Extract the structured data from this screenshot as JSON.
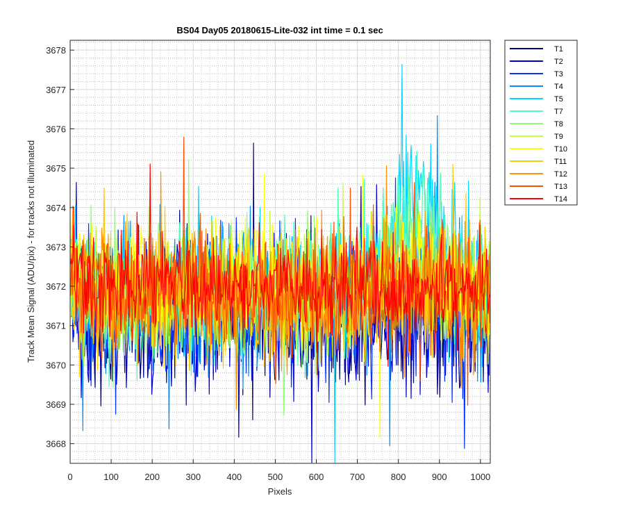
{
  "chart_data": {
    "type": "line",
    "title": "BS04 Day05 20180615-Lite-032 int time = 0.1 sec",
    "xlabel": "Pixels",
    "ylabel": "Track Mean Signal (ADU/pix) - for tracks not illuminated",
    "xlim": [
      0,
      1024
    ],
    "ylim": [
      3667.5,
      3678.25
    ],
    "xticks": [
      0,
      100,
      200,
      300,
      400,
      500,
      600,
      700,
      800,
      900,
      1000
    ],
    "yticks": [
      3668,
      3669,
      3670,
      3671,
      3672,
      3673,
      3674,
      3675,
      3676,
      3677,
      3678
    ],
    "grid": "major and minor, dotted",
    "legend_position": "outside-right-top",
    "series": [
      {
        "name": "T1",
        "color": "#00007f",
        "mean": 3671.1,
        "spread": 1.1,
        "high_pixel_bump": 0.0
      },
      {
        "name": "T2",
        "color": "#0000cc",
        "mean": 3671.2,
        "spread": 1.1,
        "high_pixel_bump": 0.0
      },
      {
        "name": "T3",
        "color": "#0033ff",
        "mean": 3671.4,
        "spread": 1.0,
        "high_pixel_bump": 0.0
      },
      {
        "name": "T4",
        "color": "#008cff",
        "mean": 3671.7,
        "spread": 1.0,
        "high_pixel_bump": 0.6
      },
      {
        "name": "T5",
        "color": "#00d9ff",
        "mean": 3671.8,
        "spread": 1.0,
        "high_pixel_bump": 2.6
      },
      {
        "name": "T7",
        "color": "#47ffb8",
        "mean": 3671.8,
        "spread": 1.0,
        "high_pixel_bump": 2.3
      },
      {
        "name": "T8",
        "color": "#8cff73",
        "mean": 3671.8,
        "spread": 1.0,
        "high_pixel_bump": 0.8
      },
      {
        "name": "T9",
        "color": "#c4ff3b",
        "mean": 3671.9,
        "spread": 1.0,
        "high_pixel_bump": 0.4
      },
      {
        "name": "T10",
        "color": "#ffff00",
        "mean": 3672.0,
        "spread": 1.0,
        "high_pixel_bump": 0.3
      },
      {
        "name": "T11",
        "color": "#ffc800",
        "mean": 3671.9,
        "spread": 1.0,
        "high_pixel_bump": 0.2
      },
      {
        "name": "T12",
        "color": "#ff9100",
        "mean": 3671.8,
        "spread": 1.0,
        "high_pixel_bump": 0.1
      },
      {
        "name": "T13",
        "color": "#ff4d00",
        "mean": 3671.9,
        "spread": 0.9,
        "high_pixel_bump": 0.0
      },
      {
        "name": "T14",
        "color": "#ff0000",
        "mean": 3672.0,
        "spread": 0.8,
        "high_pixel_bump": 0.0
      }
    ]
  }
}
